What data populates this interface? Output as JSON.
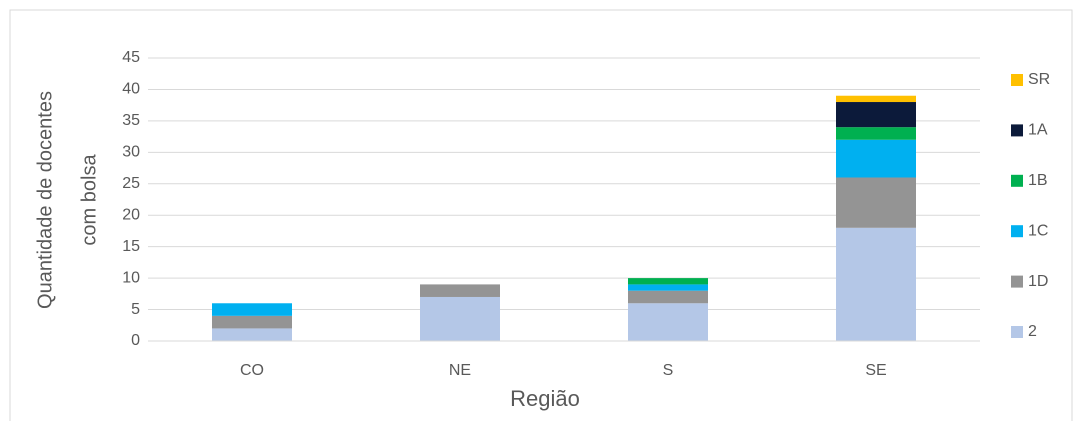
{
  "chart_data": {
    "type": "stacked_bar",
    "xlabel": "Região",
    "ylabel": [
      "Quantidade de docentes",
      "com bolsa"
    ],
    "categories": [
      "CO",
      "NE",
      "S",
      "SE"
    ],
    "series": [
      {
        "name": "2",
        "color": "#b4c7e7",
        "values": [
          2,
          7,
          6,
          18
        ]
      },
      {
        "name": "1D",
        "color": "#949494",
        "values": [
          2,
          2,
          2,
          8
        ]
      },
      {
        "name": "1C",
        "color": "#00b0f0",
        "values": [
          2,
          0,
          1,
          6
        ]
      },
      {
        "name": "1B",
        "color": "#00b050",
        "values": [
          0,
          0,
          1,
          2
        ]
      },
      {
        "name": "1A",
        "color": "#0c1a3a",
        "values": [
          0,
          0,
          0,
          4
        ]
      },
      {
        "name": "SR",
        "color": "#ffc000",
        "values": [
          0,
          0,
          0,
          1
        ]
      }
    ],
    "ylim": [
      0,
      45
    ],
    "yticks": [
      0,
      5,
      10,
      15,
      20,
      25,
      30,
      35,
      40,
      45
    ],
    "grid": true,
    "legend": "right"
  }
}
